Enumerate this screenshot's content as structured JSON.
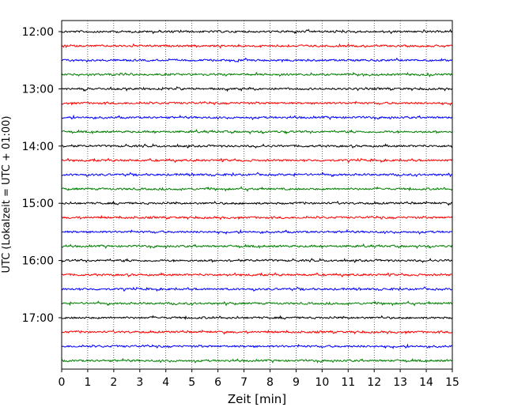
{
  "chart_data": {
    "type": "line",
    "xlabel": "Zeit  [min]",
    "ylabel": "UTC (Lokalzeit = UTC + 01:00)",
    "xlim": [
      0,
      15
    ],
    "x_ticks": [
      "0",
      "1",
      "2",
      "3",
      "4",
      "5",
      "6",
      "7",
      "8",
      "9",
      "10",
      "11",
      "12",
      "13",
      "14",
      "15"
    ],
    "y_tick_labels": [
      "12:00",
      "13:00",
      "14:00",
      "15:00",
      "16:00",
      "17:00"
    ],
    "grid": "vertical-dotted",
    "rows_start": "12:00",
    "row_minutes": 15,
    "row_count": 24,
    "colors": [
      "#000000",
      "#ff0000",
      "#0000ff",
      "#007f00"
    ]
  }
}
